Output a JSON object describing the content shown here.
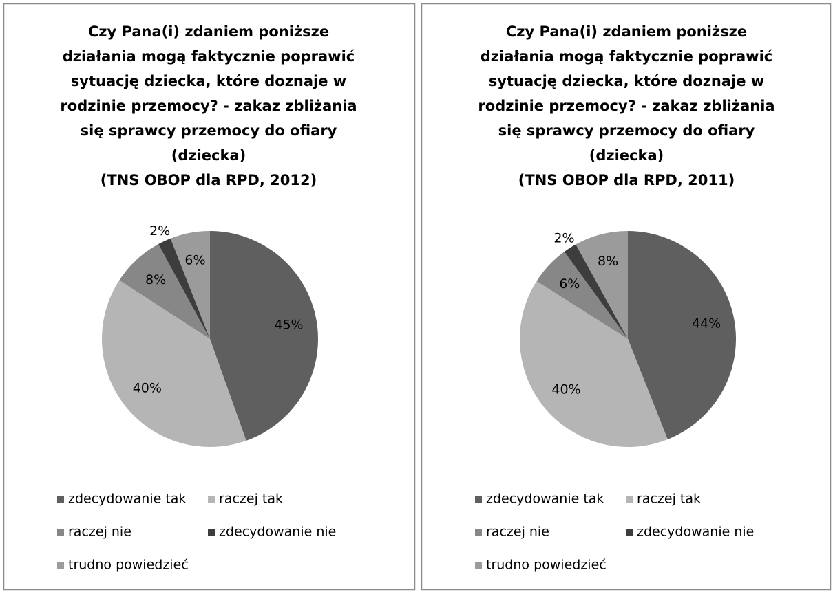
{
  "chart_data": [
    {
      "type": "pie",
      "title": [
        "Czy Pana(i) zdaniem poniższe",
        "działania mogą faktycznie poprawić",
        "sytuację dziecka, które doznaje w",
        "rodzinie przemocy? - zakaz zbliżania",
        "się sprawcy przemocy do ofiary",
        "(dziecka)",
        "(TNS OBOP dla RPD, 2012)"
      ],
      "categories": [
        "zdecydowanie tak",
        "raczej tak",
        "raczej nie",
        "zdecydowanie nie",
        "trudno powiedzieć"
      ],
      "values": [
        45,
        40,
        8,
        2,
        6
      ],
      "value_labels": [
        "45%",
        "40%",
        "8%",
        "2%",
        "6%"
      ],
      "colors": [
        "#5f5f5f",
        "#b5b5b5",
        "#878787",
        "#3d3d3d",
        "#9b9b9b"
      ],
      "legend": "bottom"
    },
    {
      "type": "pie",
      "title": [
        "Czy Pana(i) zdaniem poniższe",
        "działania mogą faktycznie poprawić",
        "sytuację dziecka, które doznaje w",
        "rodzinie przemocy? - zakaz zbliżania",
        "się sprawcy przemocy do ofiary",
        "(dziecka)",
        "(TNS OBOP dla RPD, 2011)"
      ],
      "categories": [
        "zdecydowanie tak",
        "raczej tak",
        "raczej nie",
        "zdecydowanie nie",
        "trudno powiedzieć"
      ],
      "values": [
        44,
        40,
        6,
        2,
        8
      ],
      "value_labels": [
        "44%",
        "40%",
        "6%",
        "2%",
        "8%"
      ],
      "colors": [
        "#5f5f5f",
        "#b5b5b5",
        "#878787",
        "#3d3d3d",
        "#9b9b9b"
      ],
      "legend": "bottom"
    }
  ]
}
